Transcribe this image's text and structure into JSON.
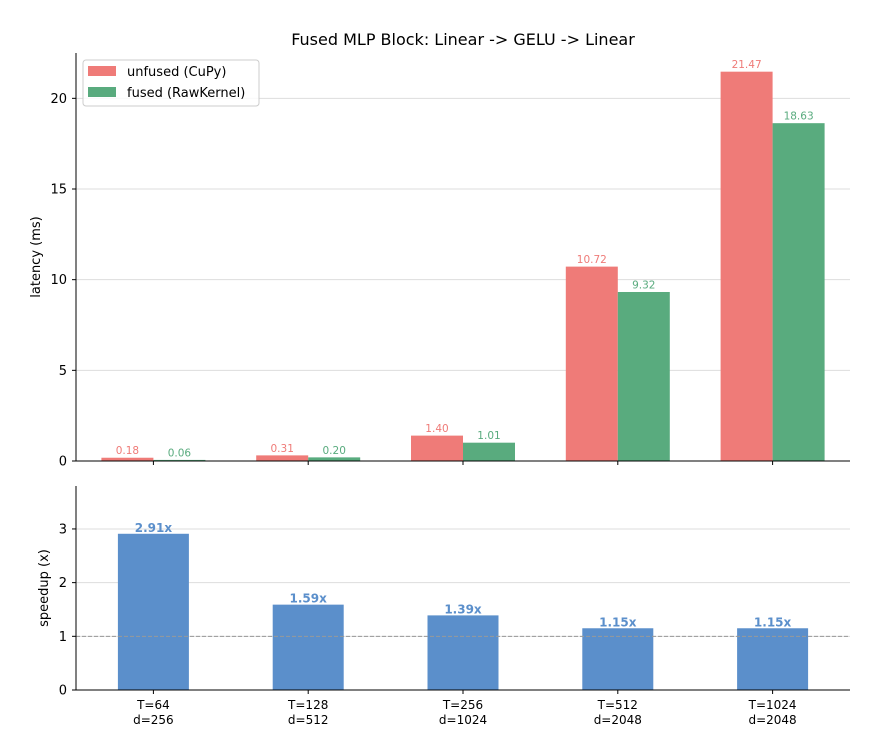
{
  "chart_data": [
    {
      "type": "bar",
      "title": "Fused MLP Block: Linear -> GELU -> Linear",
      "ylabel": "latency (ms)",
      "xlabel": "",
      "ylim": [
        0,
        22.5
      ],
      "yticks": [
        0,
        5,
        10,
        15,
        20
      ],
      "grid": "y",
      "legend": "top-left",
      "categories": [
        "T=64\nd=256",
        "T=128\nd=512",
        "T=256\nd=1024",
        "T=512\nd=2048",
        "T=1024\nd=2048"
      ],
      "series": [
        {
          "name": "unfused (CuPy)",
          "color": "#ef7b78",
          "values": [
            0.18,
            0.31,
            1.4,
            10.72,
            21.47
          ],
          "labels": [
            "0.18",
            "0.31",
            "1.40",
            "10.72",
            "21.47"
          ]
        },
        {
          "name": "fused (RawKernel)",
          "color": "#59ab7e",
          "values": [
            0.06,
            0.2,
            1.01,
            9.32,
            18.63
          ],
          "labels": [
            "0.06",
            "0.20",
            "1.01",
            "9.32",
            "18.63"
          ]
        }
      ]
    },
    {
      "type": "bar",
      "ylabel": "speedup (x)",
      "xlabel": "",
      "ylim": [
        0,
        3.8
      ],
      "yticks": [
        0,
        1,
        2,
        3
      ],
      "grid": "y",
      "reference_line": 1.0,
      "categories": [
        "T=64\nd=256",
        "T=128\nd=512",
        "T=256\nd=1024",
        "T=512\nd=2048",
        "T=1024\nd=2048"
      ],
      "series": [
        {
          "color": "#5b8fcb",
          "values": [
            2.91,
            1.59,
            1.39,
            1.15,
            1.15
          ],
          "labels": [
            "2.91x",
            "1.59x",
            "1.39x",
            "1.15x",
            "1.15x"
          ]
        }
      ]
    }
  ]
}
